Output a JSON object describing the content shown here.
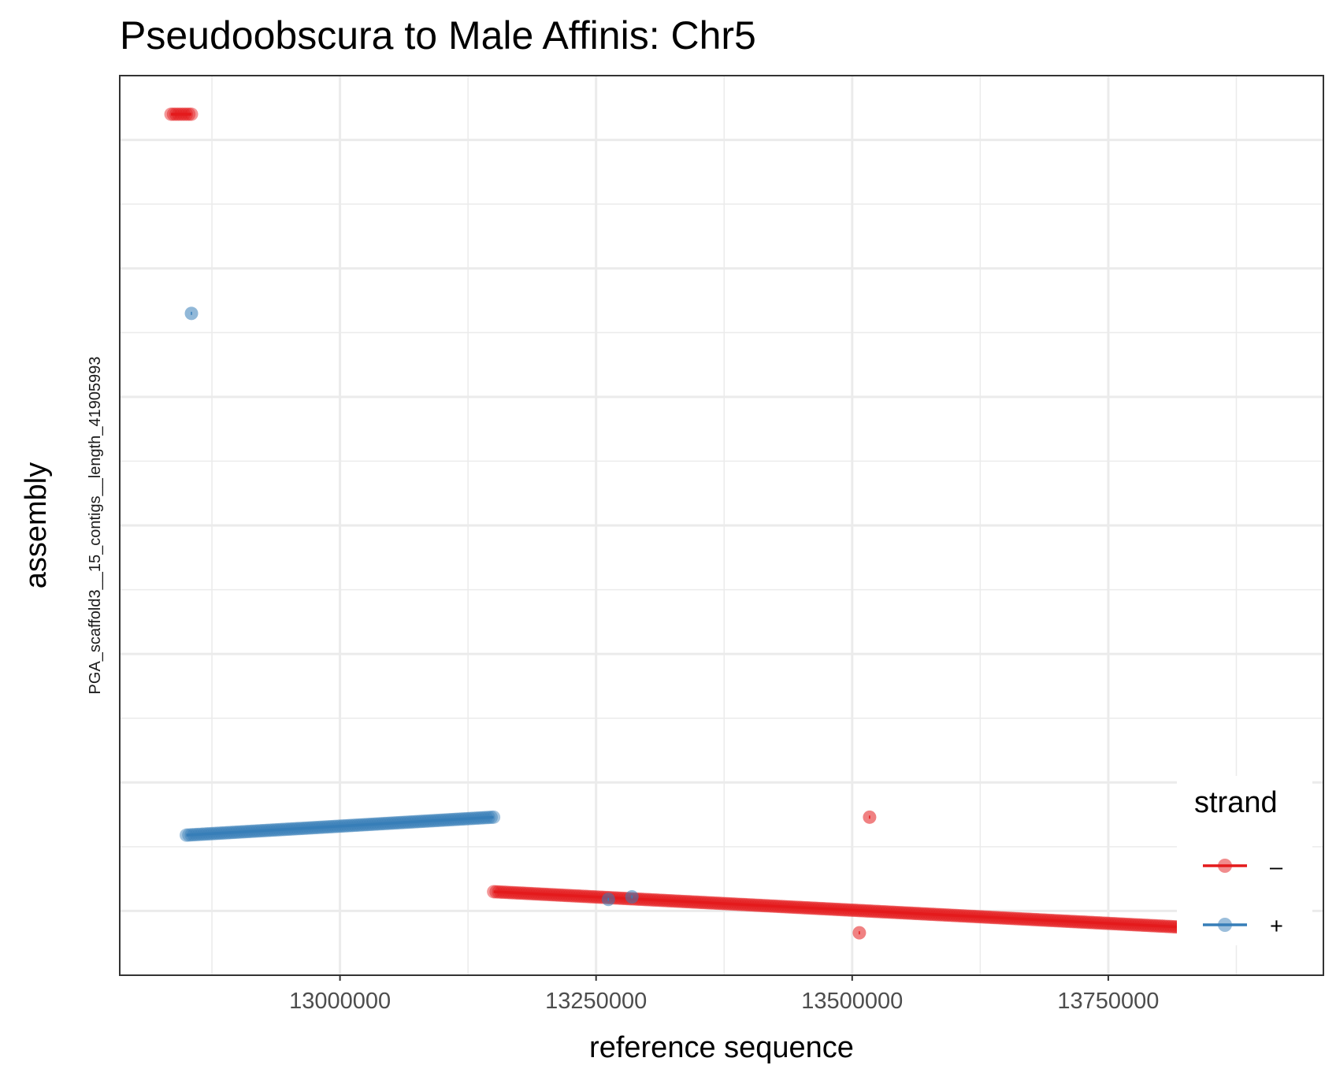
{
  "chart_data": {
    "type": "scatter",
    "title": "Pseudoobscura to Male Affinis: Chr5",
    "xlabel": "reference sequence",
    "ylabel": "assembly",
    "ylabel_secondary": "PGA_scaffold3__15_contigs__length_41905993",
    "xlim": [
      12785000,
      13960000
    ],
    "ylim": [
      0,
      7
    ],
    "x_ticks": [
      13000000,
      13250000,
      13500000,
      13750000
    ],
    "x_tick_labels": [
      "13000000",
      "13250000",
      "13500000",
      "13750000"
    ],
    "grid": true,
    "legend": {
      "title": "strand",
      "position": "right-bottom",
      "entries": [
        {
          "label": "–",
          "color": "#E41A1C"
        },
        {
          "label": "+",
          "color": "#377EB8"
        }
      ]
    },
    "series": [
      {
        "name": "–",
        "color": "#E41A1C",
        "segments": [
          {
            "x": [
              12835000,
              12855000
            ],
            "y": [
              6.7,
              6.7
            ]
          },
          {
            "x": [
              13150000,
              13880000
            ],
            "y": [
              0.65,
              0.35
            ]
          }
        ],
        "points": [
          {
            "x": 13517000,
            "y": 1.23
          },
          {
            "x": 13507000,
            "y": 0.33
          }
        ]
      },
      {
        "name": "+",
        "color": "#377EB8",
        "segments": [
          {
            "x": [
              12850000,
              13150000
            ],
            "y": [
              1.09,
              1.23
            ]
          }
        ],
        "points": [
          {
            "x": 12855000,
            "y": 5.15
          },
          {
            "x": 13262000,
            "y": 0.59
          },
          {
            "x": 13285000,
            "y": 0.61
          }
        ]
      }
    ]
  }
}
